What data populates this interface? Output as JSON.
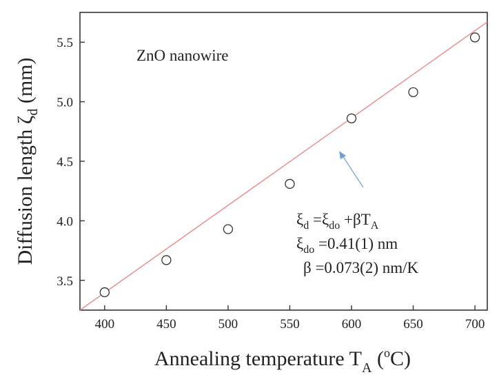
{
  "chart_data": {
    "type": "scatter",
    "title": "",
    "xlabel": {
      "main": "Annealing temperature T",
      "sub": "A",
      "unit_open": " (",
      "unit_sup": "o",
      "unit_close": "C)"
    },
    "ylabel": {
      "main": "Diffusion length ζ",
      "sub": "d",
      "unit": " (mm)"
    },
    "xlim": [
      380,
      710
    ],
    "ylim": [
      3.25,
      5.75
    ],
    "xticks": [
      400,
      450,
      500,
      550,
      600,
      650,
      700
    ],
    "yticks": [
      3.5,
      4.0,
      4.5,
      5.0,
      5.5
    ],
    "xtick_labels": [
      "400",
      "450",
      "500",
      "550",
      "600",
      "650",
      "700"
    ],
    "ytick_labels": [
      "3.5",
      "4.0",
      "4.5",
      "5.0",
      "5.5"
    ],
    "series": [
      {
        "marker": "open-circle",
        "x": [
          400,
          450,
          500,
          550,
          600,
          650,
          700
        ],
        "y": [
          3.4,
          3.67,
          3.93,
          4.31,
          4.86,
          5.08,
          5.54
        ]
      }
    ],
    "fit_line": {
      "color": "#e88a8a",
      "x": [
        380,
        710
      ],
      "y": [
        3.24,
        5.67
      ]
    },
    "annotations": {
      "sample": "ZnO nanowire",
      "eq1": {
        "lhs": "ξ",
        "lhs_sub": "d",
        "mid": " =ξ",
        "mid_sub": "do",
        "rhs": " +βT",
        "rhs_sub": "A"
      },
      "eq2": {
        "lhs": "ξ",
        "lhs_sub": "do",
        "rhs": " =0.41(1) nm"
      },
      "eq3": "β =0.073(2) nm/K",
      "arrow_color": "#6f9fd6"
    },
    "grid": false,
    "legend": "none"
  }
}
